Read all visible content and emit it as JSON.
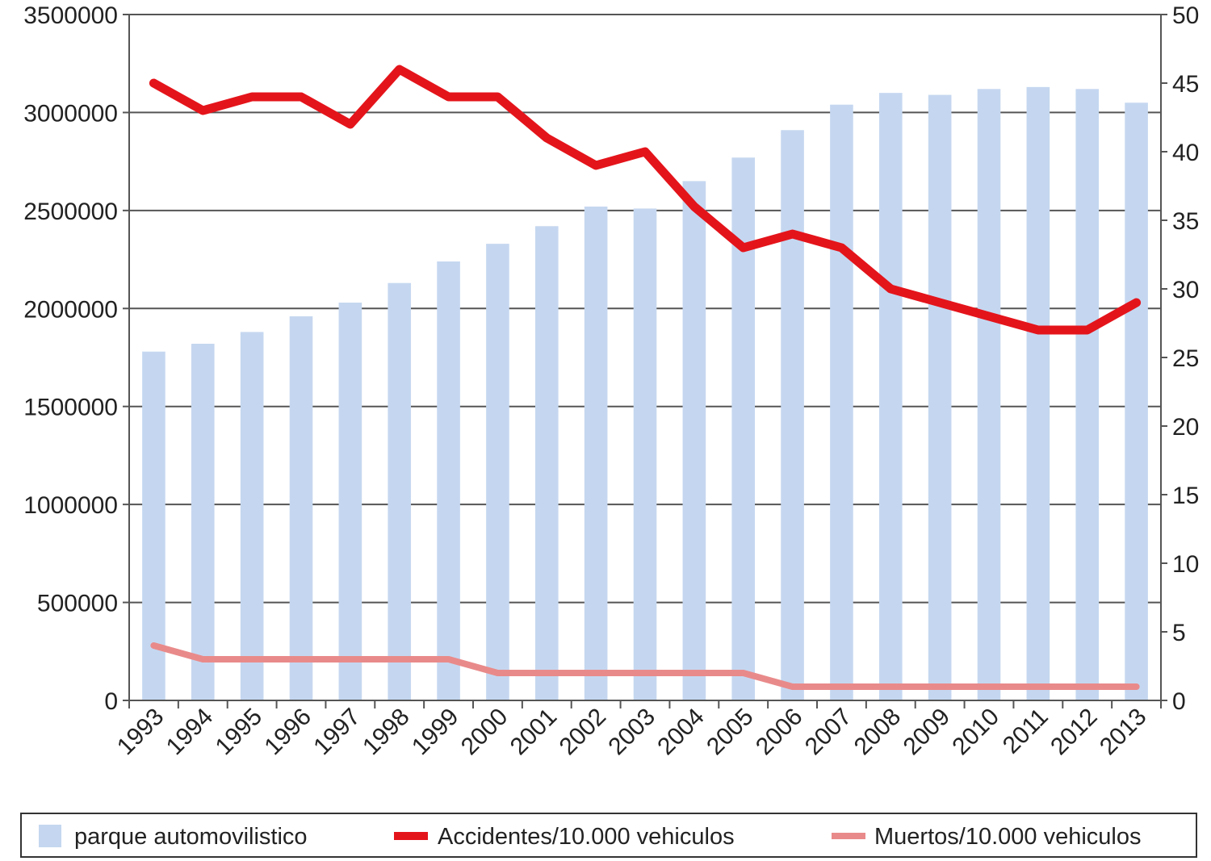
{
  "chart_data": {
    "type": "bar",
    "categories": [
      "1993",
      "1994",
      "1995",
      "1996",
      "1997",
      "1998",
      "1999",
      "2000",
      "2001",
      "2002",
      "2003",
      "2004",
      "2005",
      "2006",
      "2007",
      "2008",
      "2009",
      "2010",
      "2011",
      "2012",
      "2013"
    ],
    "series": [
      {
        "name": "parque automovilistico",
        "type": "bar",
        "axis": "left",
        "color": "#c5d7f0",
        "values": [
          1780000,
          1820000,
          1880000,
          1960000,
          2030000,
          2130000,
          2240000,
          2330000,
          2420000,
          2520000,
          2510000,
          2650000,
          2770000,
          2910000,
          3040000,
          3100000,
          3090000,
          3120000,
          3130000,
          3120000,
          3050000
        ]
      },
      {
        "name": "Accidentes/10.000 vehiculos",
        "type": "line",
        "axis": "right",
        "color": "#e4141b",
        "values": [
          45,
          43,
          44,
          44,
          42,
          46,
          44,
          44,
          41,
          39,
          40,
          36,
          33,
          34,
          33,
          30,
          29,
          28,
          27,
          27,
          29
        ]
      },
      {
        "name": "Muertos/10.000 vehiculos",
        "type": "line",
        "axis": "right",
        "color": "#e98a8a",
        "values": [
          4,
          3,
          3,
          3,
          3,
          3,
          3,
          2,
          2,
          2,
          2,
          2,
          2,
          1,
          1,
          1,
          1,
          1,
          1,
          1,
          1
        ]
      }
    ],
    "y_left": {
      "lim": [
        0,
        3500000
      ],
      "ticks": [
        "0",
        "500000",
        "1000000",
        "1500000",
        "2000000",
        "2500000",
        "3000000",
        "3500000"
      ]
    },
    "y_right": {
      "lim": [
        0,
        50
      ],
      "ticks": [
        "0",
        "5",
        "10",
        "15",
        "20",
        "25",
        "30",
        "35",
        "40",
        "45",
        "50"
      ]
    },
    "grid": "horizontal",
    "legend_position": "bottom",
    "legend": [
      "parque automovilistico",
      "Accidentes/10.000 vehiculos",
      "Muertos/10.000 vehiculos"
    ]
  }
}
